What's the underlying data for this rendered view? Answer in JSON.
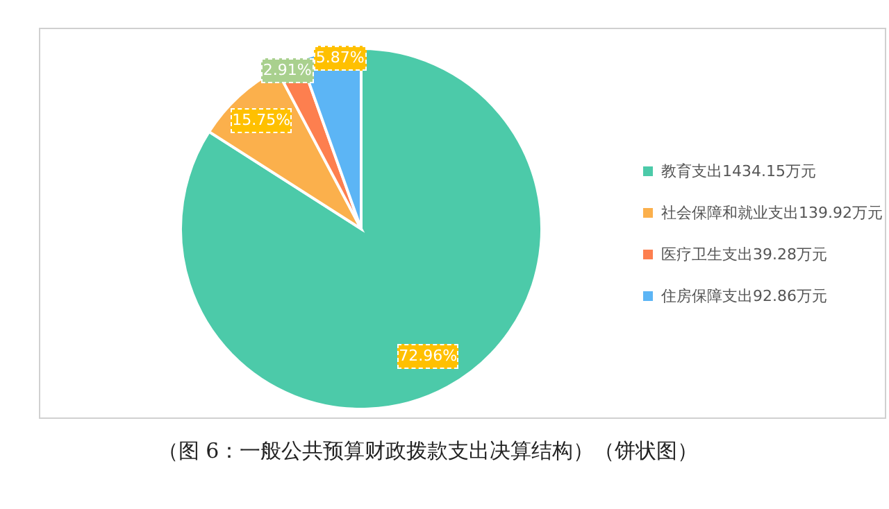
{
  "chart_data": {
    "type": "pie",
    "categories": [
      "教育支出1434.15万元",
      "社会保障和就业支出139.92万元",
      "医疗卫生支出39.28万元",
      "住房保障支出92.86万元"
    ],
    "values": [
      1434.15,
      139.92,
      39.28,
      92.86
    ],
    "colors": [
      "#4ccaa9",
      "#fbb04c",
      "#fd7f4f",
      "#5cb5f5"
    ],
    "legend": "right",
    "annotations": [
      "（图 6：一般公共预算财政拨款支出决算结构）（饼状图）",
      {
        "text": "72.96%",
        "x": "教育支出1434.15万元"
      },
      {
        "text": "15.75%",
        "x": "社会保障和就业支出139.92万元"
      },
      {
        "text": "2.91%",
        "x": "医疗卫生支出39.28万元"
      },
      {
        "text": "5.87%",
        "x": "住房保障支出92.86万元"
      }
    ]
  }
}
